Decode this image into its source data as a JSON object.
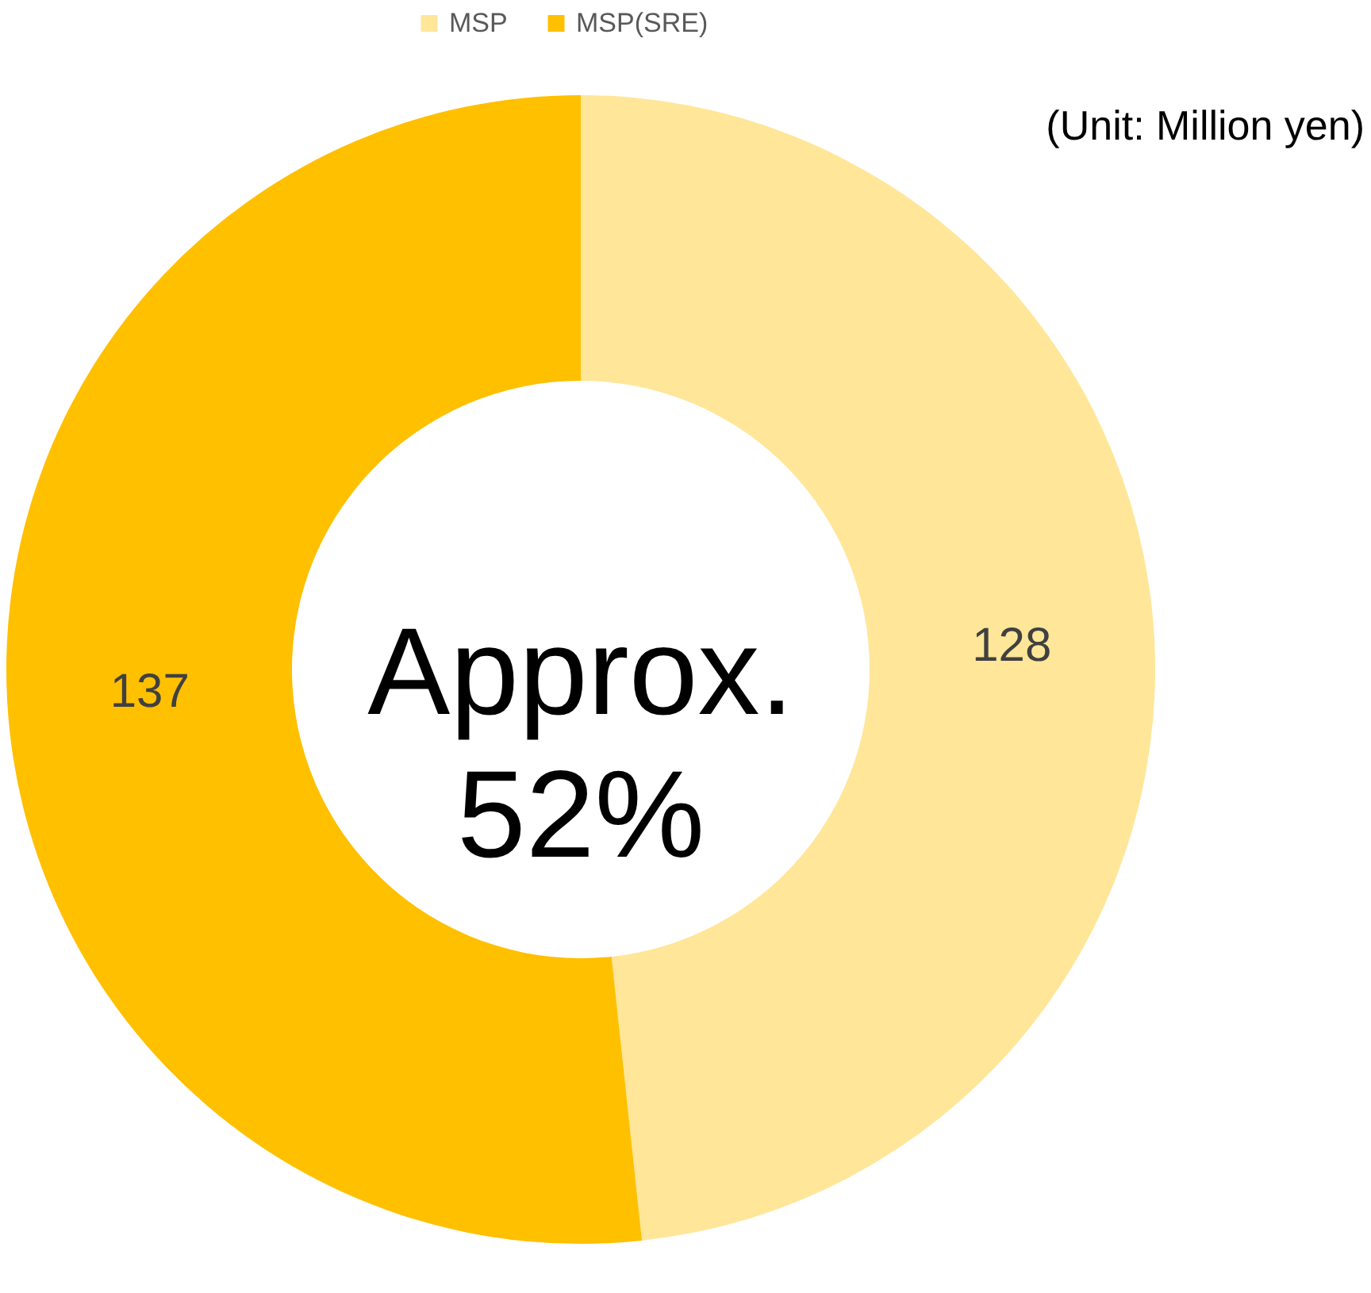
{
  "chart_data": {
    "type": "donut",
    "categories": [
      "MSP",
      "MSP(SRE)"
    ],
    "values": [
      128,
      137
    ],
    "colors": [
      "#ffe699",
      "#ffc000"
    ],
    "data_labels": true,
    "legend": "top",
    "annotations": [
      "(Unit: Million yen)",
      "Approx. 52%"
    ]
  }
}
